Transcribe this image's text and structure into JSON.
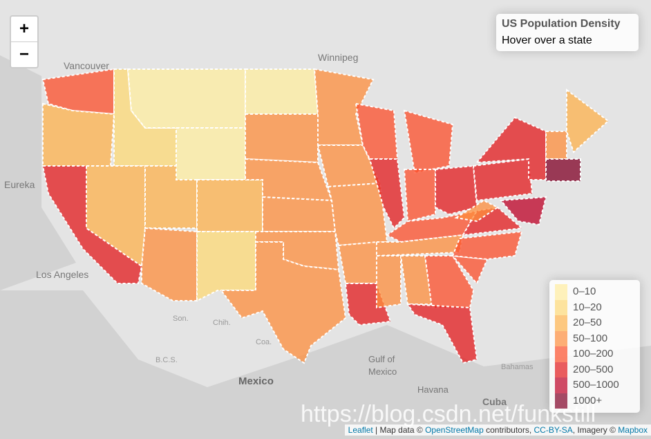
{
  "info": {
    "title": "US Population Density",
    "subtitle": "Hover over a state"
  },
  "zoom": {
    "in": "+",
    "out": "−"
  },
  "legend": {
    "items": [
      {
        "label": "0–10",
        "color": "#FFEDA0"
      },
      {
        "label": "10–20",
        "color": "#FED976"
      },
      {
        "label": "20–50",
        "color": "#FEB24C"
      },
      {
        "label": "50–100",
        "color": "#FD8D3C"
      },
      {
        "label": "100–200",
        "color": "#FC4E2A"
      },
      {
        "label": "200–500",
        "color": "#E31A1C"
      },
      {
        "label": "500–1000",
        "color": "#BD0026"
      },
      {
        "label": "1000+",
        "color": "#800026"
      }
    ]
  },
  "map_labels": [
    "Winnipeg",
    "Vancouver",
    "Eureka",
    "Los Angeles",
    "Son.",
    "Chih.",
    "Coa.",
    "B.C.S.",
    "Mexico",
    "Gulf of",
    "Mexico",
    "Havana",
    "Cuba",
    "Bahamas"
  ],
  "attribution": {
    "leaflet": "Leaflet",
    "map_data": "| Map data ©",
    "osm": "OpenStreetMap",
    "contributors": "contributors,",
    "license": "CC-BY-SA",
    "imagery": ", Imagery ©",
    "mapbox": "Mapbox"
  },
  "watermark": "https://blog.csdn.net/funkstill"
}
